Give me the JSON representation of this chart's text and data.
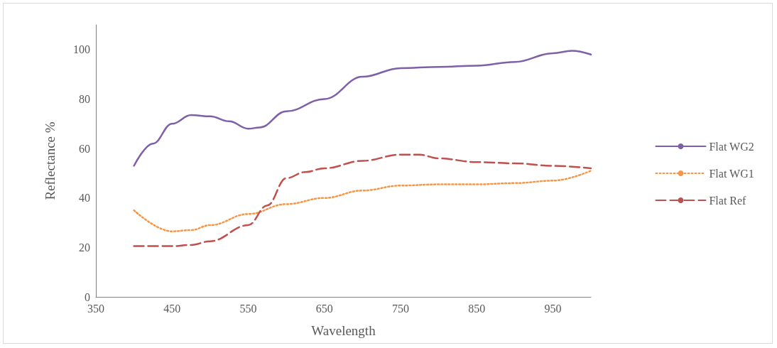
{
  "chart_data": {
    "type": "line",
    "xlabel": "Wavelength",
    "ylabel": "Reflectance %",
    "xlim": [
      350,
      1000
    ],
    "xticks": [
      350,
      450,
      550,
      650,
      750,
      850,
      950
    ],
    "ylim": [
      0,
      110
    ],
    "yticks": [
      0,
      20,
      40,
      60,
      80,
      100
    ],
    "grid": false,
    "legend": "right",
    "marker": "none",
    "series": [
      {
        "name": "Flat WG2",
        "color": "#7e60a8",
        "line_style": "solid",
        "x": [
          400,
          425,
          450,
          475,
          500,
          525,
          550,
          565,
          600,
          650,
          700,
          750,
          800,
          850,
          900,
          950,
          975,
          1000
        ],
        "values": [
          53,
          62,
          70,
          73.5,
          73,
          71,
          68,
          68.5,
          75,
          80,
          89,
          92.5,
          93,
          93.5,
          95,
          98.5,
          99.5,
          98
        ]
      },
      {
        "name": "Flat WG1",
        "color": "#f79646",
        "line_style": "dotted",
        "x": [
          400,
          450,
          475,
          500,
          550,
          600,
          650,
          700,
          750,
          800,
          850,
          900,
          950,
          1000
        ],
        "values": [
          35,
          26.5,
          27,
          29,
          33.5,
          37.5,
          40,
          43,
          45,
          45.5,
          45.5,
          46,
          47,
          51
        ]
      },
      {
        "name": "Flat Ref",
        "color": "#c0504d",
        "line_style": "dashed",
        "x": [
          400,
          450,
          475,
          500,
          550,
          575,
          600,
          625,
          650,
          700,
          750,
          775,
          800,
          850,
          900,
          950,
          1000
        ],
        "values": [
          20.5,
          20.5,
          21,
          22.5,
          29,
          37,
          48,
          50.5,
          52,
          55,
          57.5,
          57.5,
          56,
          54.5,
          54,
          53,
          52
        ]
      }
    ]
  }
}
